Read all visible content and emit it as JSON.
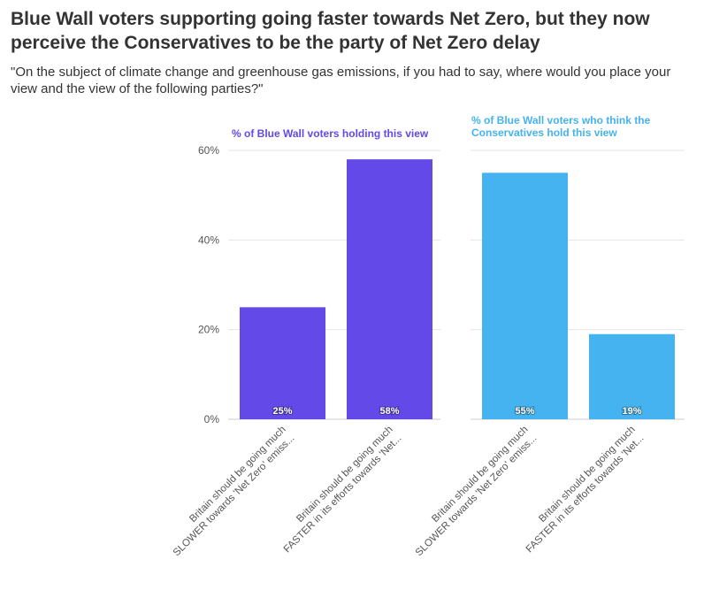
{
  "title": "Blue Wall voters supporting going faster towards Net Zero, but they now perceive the Conservatives to be the party of Net Zero delay",
  "subtitle": "\"On the subject of climate change and greenhouse gas emissions, if you had to say, where would you place your view and the view of the following parties?\"",
  "chart_data": {
    "type": "bar",
    "ylim": [
      0,
      60
    ],
    "yticks": [
      "0%",
      "20%",
      "40%",
      "60%"
    ],
    "grid": true,
    "panels": [
      {
        "title": [
          "% of Blue Wall voters holding this view"
        ],
        "color": "#6349e8",
        "categories": [
          [
            "Britain should be going much",
            "SLOWER towards 'Net Zero' emiss..."
          ],
          [
            "Britain should be going much",
            "FASTER in its efforts towards 'Net..."
          ]
        ],
        "values": [
          25,
          58
        ],
        "labels": [
          "25%",
          "58%"
        ]
      },
      {
        "title": [
          "% of Blue Wall voters who think the",
          "Conservatives hold this view"
        ],
        "color": "#45b3ef",
        "categories": [
          [
            "Britain should be going much",
            "SLOWER towards 'Net Zero' emiss..."
          ],
          [
            "Britain should be going much",
            "FASTER in its efforts towards 'Net..."
          ]
        ],
        "values": [
          55,
          19
        ],
        "labels": [
          "55%",
          "19%"
        ]
      }
    ]
  }
}
